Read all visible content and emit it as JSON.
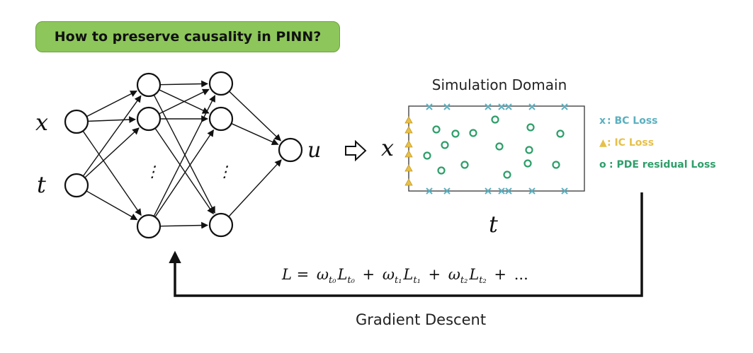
{
  "question": "How to preserve causality in PINN?",
  "inputs": [
    "x",
    "t"
  ],
  "output": "u",
  "ellipsis": "⋮",
  "domain": {
    "title": "Simulation Domain",
    "space_label": "x",
    "time_label": "t"
  },
  "legend": {
    "bc": {
      "marker": "x",
      "label": ": BC Loss"
    },
    "ic": {
      "marker": "▲",
      "label": ": IC Loss"
    },
    "pde": {
      "marker": "o",
      "label": ": PDE residual Loss"
    }
  },
  "loss_formula": "L = ω_{t0} L_{t0} + ω_{t1} L_{t1} + ω_{t2} L_{t2} + ...",
  "loss_parts": {
    "lhs": "L =",
    "w": "ω",
    "l": "L",
    "s0": "t₀",
    "s1": "t₁",
    "s2": "t₂",
    "plus": "+",
    "dots": "..."
  },
  "feedback_label": "Gradient Descent",
  "colors": {
    "badge": "#8dc65a",
    "bc": "#5bb0c0",
    "ic": "#e6c04a",
    "pde": "#2e9e6a"
  }
}
